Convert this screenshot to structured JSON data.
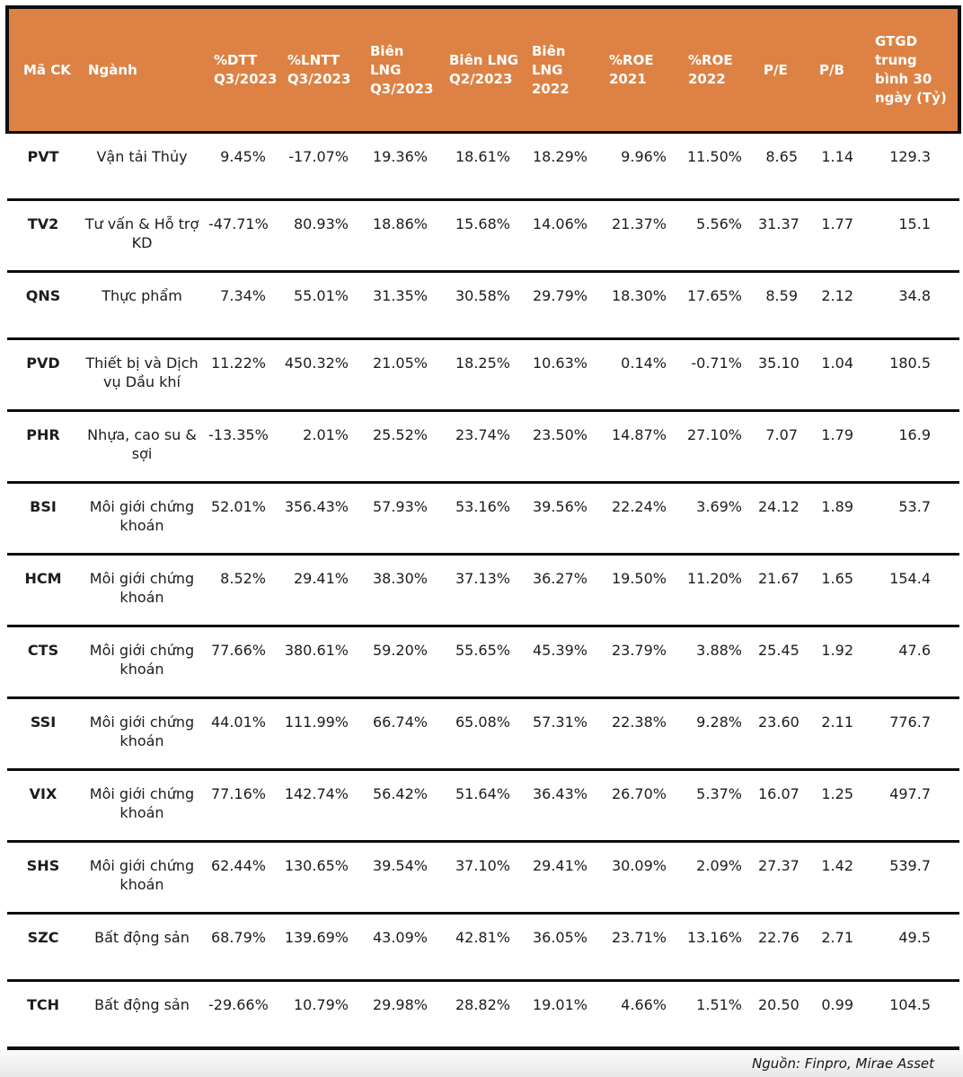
{
  "colors": {
    "header_bg": "#DD8244",
    "header_text": "#FFFFFF",
    "border": "#0D0D0D",
    "body_text": "#1C1C1C"
  },
  "table": {
    "columns": [
      {
        "id": "ma-ck",
        "label": "Mã CK"
      },
      {
        "id": "nganh",
        "label": "Ngành"
      },
      {
        "id": "dtt-q3-2023",
        "label": "%DTT Q3/2023"
      },
      {
        "id": "lntt-q3-2023",
        "label": "%LNTT Q3/2023"
      },
      {
        "id": "bien-lng-q3-2023",
        "label": "Biên LNG Q3/2023"
      },
      {
        "id": "bien-lng-q2-2023",
        "label": "Biên LNG Q2/2023"
      },
      {
        "id": "bien-lng-2022",
        "label": "Biên LNG 2022"
      },
      {
        "id": "roe-2021",
        "label": "%ROE 2021"
      },
      {
        "id": "roe-2022",
        "label": "%ROE 2022"
      },
      {
        "id": "pe",
        "label": "P/E"
      },
      {
        "id": "pb",
        "label": "P/B"
      },
      {
        "id": "gtgd",
        "label": "GTGD trung bình 30 ngày (Tỷ)"
      }
    ],
    "rows": [
      {
        "code": "PVT",
        "industry": "Vận tải Thủy",
        "values": [
          "9.45%",
          "-17.07%",
          "19.36%",
          "18.61%",
          "18.29%",
          "9.96%",
          "11.50%",
          "8.65",
          "1.14",
          "129.3"
        ]
      },
      {
        "code": "TV2",
        "industry": "Tư vấn & Hỗ trợ KD",
        "values": [
          "-47.71%",
          "80.93%",
          "18.86%",
          "15.68%",
          "14.06%",
          "21.37%",
          "5.56%",
          "31.37",
          "1.77",
          "15.1"
        ]
      },
      {
        "code": "QNS",
        "industry": "Thực phẩm",
        "values": [
          "7.34%",
          "55.01%",
          "31.35%",
          "30.58%",
          "29.79%",
          "18.30%",
          "17.65%",
          "8.59",
          "2.12",
          "34.8"
        ]
      },
      {
        "code": "PVD",
        "industry": "Thiết bị và Dịch vụ Dầu khí",
        "values": [
          "11.22%",
          "450.32%",
          "21.05%",
          "18.25%",
          "10.63%",
          "0.14%",
          "-0.71%",
          "35.10",
          "1.04",
          "180.5"
        ]
      },
      {
        "code": "PHR",
        "industry": "Nhựa, cao su & sợi",
        "values": [
          "-13.35%",
          "2.01%",
          "25.52%",
          "23.74%",
          "23.50%",
          "14.87%",
          "27.10%",
          "7.07",
          "1.79",
          "16.9"
        ]
      },
      {
        "code": "BSI",
        "industry": "Môi giới chứng khoán",
        "values": [
          "52.01%",
          "356.43%",
          "57.93%",
          "53.16%",
          "39.56%",
          "22.24%",
          "3.69%",
          "24.12",
          "1.89",
          "53.7"
        ]
      },
      {
        "code": "HCM",
        "industry": "Môi giới chứng khoán",
        "values": [
          "8.52%",
          "29.41%",
          "38.30%",
          "37.13%",
          "36.27%",
          "19.50%",
          "11.20%",
          "21.67",
          "1.65",
          "154.4"
        ]
      },
      {
        "code": "CTS",
        "industry": "Môi giới chứng khoán",
        "values": [
          "77.66%",
          "380.61%",
          "59.20%",
          "55.65%",
          "45.39%",
          "23.79%",
          "3.88%",
          "25.45",
          "1.92",
          "47.6"
        ]
      },
      {
        "code": "SSI",
        "industry": "Môi giới chứng khoán",
        "values": [
          "44.01%",
          "111.99%",
          "66.74%",
          "65.08%",
          "57.31%",
          "22.38%",
          "9.28%",
          "23.60",
          "2.11",
          "776.7"
        ]
      },
      {
        "code": "VIX",
        "industry": "Môi giới chứng khoán",
        "values": [
          "77.16%",
          "142.74%",
          "56.42%",
          "51.64%",
          "36.43%",
          "26.70%",
          "5.37%",
          "16.07",
          "1.25",
          "497.7"
        ]
      },
      {
        "code": "SHS",
        "industry": "Môi giới chứng khoán",
        "values": [
          "62.44%",
          "130.65%",
          "39.54%",
          "37.10%",
          "29.41%",
          "30.09%",
          "2.09%",
          "27.37",
          "1.42",
          "539.7"
        ]
      },
      {
        "code": "SZC",
        "industry": "Bất động sản",
        "values": [
          "68.79%",
          "139.69%",
          "43.09%",
          "42.81%",
          "36.05%",
          "23.71%",
          "13.16%",
          "22.76",
          "2.71",
          "49.5"
        ]
      },
      {
        "code": "TCH",
        "industry": "Bất động sản",
        "values": [
          "-29.66%",
          "10.79%",
          "29.98%",
          "28.82%",
          "19.01%",
          "4.66%",
          "1.51%",
          "20.50",
          "0.99",
          "104.5"
        ]
      }
    ]
  },
  "footer": {
    "source_label": "Nguồn: Finpro, Mirae Asset"
  }
}
